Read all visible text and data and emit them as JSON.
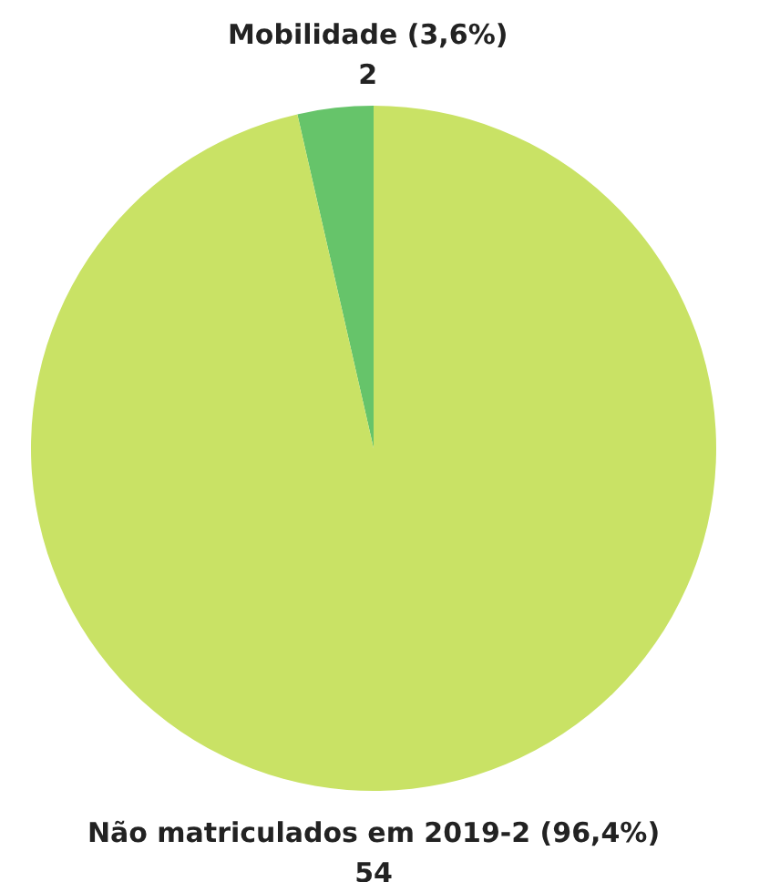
{
  "chart_data": {
    "type": "pie",
    "categories": [
      "Mobilidade (3,6%)",
      "Não matriculados em 2019-2 (96,4%)"
    ],
    "values": [
      2,
      54
    ],
    "colors": [
      "#66c46a",
      "#c9e265"
    ],
    "data_labels": true
  }
}
